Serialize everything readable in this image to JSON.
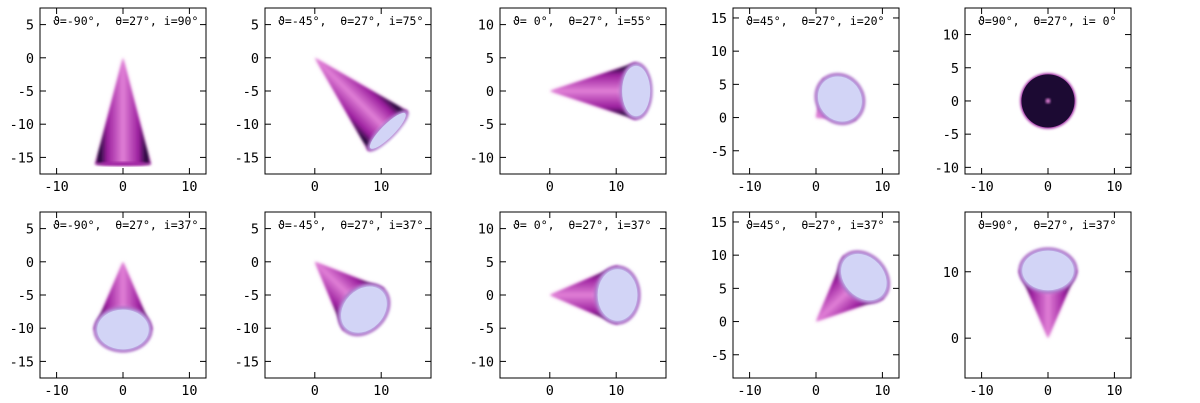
{
  "colors": {
    "cone_dark": "#1c0a33",
    "cone_mid": "#9b1f9e",
    "cone_light": "#e07fd6",
    "cap_light": "#d2d4f6",
    "cap_mid": "#c4c7f2",
    "frame": "#000000"
  },
  "chart_data": [
    {
      "type": "image",
      "label": "ϑ=-90°,  θ=27°, i=90°",
      "xlim": [
        -12.5,
        12.5
      ],
      "ylim": [
        -17.5,
        7.5
      ],
      "xticks": [
        -10,
        0,
        10
      ],
      "yticks": [
        5,
        0,
        -5,
        -10,
        -15
      ],
      "cone": {
        "apex": [
          0,
          0
        ],
        "cap_center": [
          0,
          -16
        ],
        "cap_half_width": 4.2,
        "cap_minor": 0.3,
        "cap_visible": false
      }
    },
    {
      "type": "image",
      "label": "ϑ=-45°,  θ=27°, i=75°",
      "xlim": [
        -7.5,
        17.5
      ],
      "ylim": [
        -17.5,
        7.5
      ],
      "xticks": [
        0,
        10
      ],
      "yticks": [
        5,
        0,
        -5,
        -10,
        -15
      ],
      "cone": {
        "apex": [
          0,
          0
        ],
        "cap_center": [
          11,
          -11
        ],
        "cap_half_width": 4.2,
        "cap_minor": 1.1,
        "cap_visible": true
      }
    },
    {
      "type": "image",
      "label": "ϑ= 0°,  θ=27°, i=55°",
      "xlim": [
        -7.5,
        17.5
      ],
      "ylim": [
        -12.5,
        12.5
      ],
      "xticks": [
        0,
        10
      ],
      "yticks": [
        10,
        5,
        0,
        -5,
        -10
      ],
      "cone": {
        "apex": [
          0,
          0
        ],
        "cap_center": [
          13,
          0
        ],
        "cap_half_width": 4.3,
        "cap_minor": 2.4,
        "cap_visible": true
      }
    },
    {
      "type": "image",
      "label": "ϑ=45°,  θ=27°, i=20°",
      "xlim": [
        -12.5,
        12.5
      ],
      "ylim": [
        -8.5,
        16.5
      ],
      "xticks": [
        -10,
        0,
        10
      ],
      "yticks": [
        15,
        10,
        5,
        0,
        -5
      ],
      "cone": {
        "apex": [
          0,
          0
        ],
        "cap_center": [
          3.6,
          2.8
        ],
        "cap_half_width": 4.0,
        "cap_minor": 3.6,
        "cap_visible": true
      }
    },
    {
      "type": "image",
      "label": "ϑ=90°,  θ=27°, i= 0°",
      "xlim": [
        -12.5,
        12.5
      ],
      "ylim": [
        -11,
        14
      ],
      "xticks": [
        -10,
        0,
        10
      ],
      "yticks": [
        10,
        5,
        0,
        -5,
        -10
      ],
      "cone": {
        "apex": [
          0,
          0
        ],
        "cap_center": [
          0,
          0
        ],
        "cap_half_width": 4.0,
        "cap_minor": 4.0,
        "cap_visible": false,
        "face_on": true
      }
    },
    {
      "type": "image",
      "label": "ϑ=-90°,  θ=27°, i=37°",
      "xlim": [
        -12.5,
        12.5
      ],
      "ylim": [
        -17.5,
        7.5
      ],
      "xticks": [
        -10,
        0,
        10
      ],
      "yticks": [
        5,
        0,
        -5,
        -10,
        -15
      ],
      "cone": {
        "apex": [
          0,
          0
        ],
        "cap_center": [
          0,
          -10.2
        ],
        "cap_half_width": 4.4,
        "cap_minor": 3.4,
        "cap_visible": true
      }
    },
    {
      "type": "image",
      "label": "ϑ=-45°,  θ=27°, i=37°",
      "xlim": [
        -7.5,
        17.5
      ],
      "ylim": [
        -17.5,
        7.5
      ],
      "xticks": [
        0,
        10
      ],
      "yticks": [
        5,
        0,
        -5,
        -10,
        -15
      ],
      "cone": {
        "apex": [
          0,
          0
        ],
        "cap_center": [
          7.4,
          -7.2
        ],
        "cap_half_width": 4.4,
        "cap_minor": 3.4,
        "cap_visible": true
      }
    },
    {
      "type": "image",
      "label": "ϑ= 0°,  θ=27°, i=37°",
      "xlim": [
        -7.5,
        17.5
      ],
      "ylim": [
        -12.5,
        12.5
      ],
      "xticks": [
        0,
        10
      ],
      "yticks": [
        10,
        5,
        0,
        -5,
        -10
      ],
      "cone": {
        "apex": [
          0,
          0
        ],
        "cap_center": [
          10.2,
          0
        ],
        "cap_half_width": 4.4,
        "cap_minor": 3.4,
        "cap_visible": true
      }
    },
    {
      "type": "image",
      "label": "ϑ=45°,  θ=27°, i=37°",
      "xlim": [
        -12.5,
        12.5
      ],
      "ylim": [
        -8.5,
        16.5
      ],
      "xticks": [
        -10,
        0,
        10
      ],
      "yticks": [
        15,
        10,
        5,
        0,
        -5
      ],
      "cone": {
        "apex": [
          0,
          0
        ],
        "cap_center": [
          7.2,
          6.7
        ],
        "cap_half_width": 4.4,
        "cap_minor": 3.4,
        "cap_visible": true
      }
    },
    {
      "type": "image",
      "label": "ϑ=90°,  θ=27°, i=37°",
      "xlim": [
        -12.5,
        12.5
      ],
      "ylim": [
        -6,
        19
      ],
      "xticks": [
        -10,
        0,
        10
      ],
      "yticks": [
        10,
        0
      ],
      "cone": {
        "apex": [
          0,
          0
        ],
        "cap_center": [
          0,
          10.2
        ],
        "cap_half_width": 4.4,
        "cap_minor": 3.4,
        "cap_visible": true
      }
    }
  ]
}
